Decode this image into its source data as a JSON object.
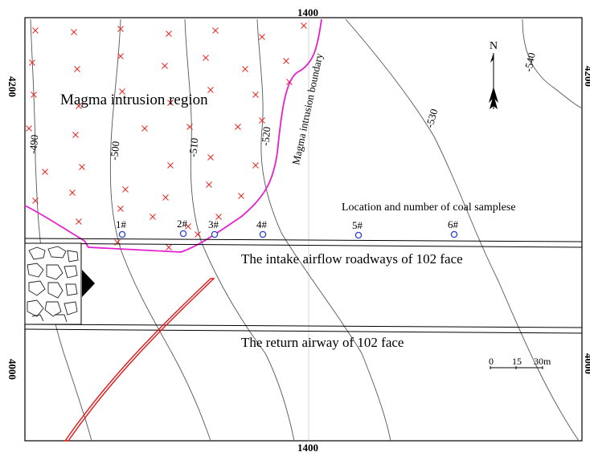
{
  "grid": {
    "top_label": "1400",
    "bottom_label": "1400",
    "left_top_label": "4200",
    "left_bottom_label": "4000",
    "right_top_label": "4200",
    "right_bottom_label": "4000"
  },
  "north_arrow": {
    "label": "N"
  },
  "regions": {
    "magma_region": "Magma intrusion region",
    "magma_boundary": "Magma intrusion boundary"
  },
  "contours": [
    "-490",
    "-500",
    "-510",
    "-520",
    "-530",
    "-540"
  ],
  "samples": {
    "title": "Location and number of coal samplese",
    "points": [
      "1#",
      "2#",
      "3#",
      "4#",
      "5#",
      "6#"
    ]
  },
  "roadways": {
    "intake": "The intake airflow roadways of 102 face",
    "return": "The return airway of 102 face"
  },
  "scale_bar": {
    "t0": "0",
    "t1": "15",
    "t2": "30m"
  },
  "colors": {
    "magma_boundary": "#e61fce",
    "magma_marks": "#e8302a",
    "fault": "#e01818",
    "samples": "#2b3fd6",
    "contour": "#555555"
  }
}
